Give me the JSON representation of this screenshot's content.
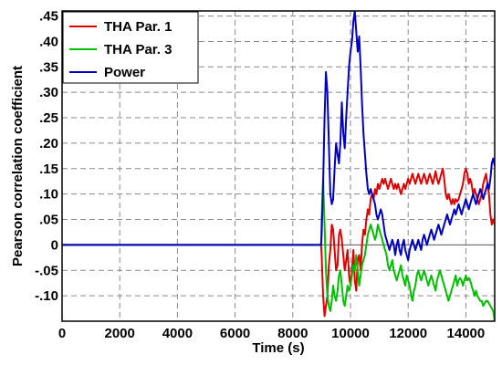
{
  "chart_data": {
    "type": "line",
    "title": "",
    "xlabel": "Time (s)",
    "ylabel": "Pearson correlation coefficient",
    "xlim": [
      0,
      15000
    ],
    "ylim": [
      -0.15,
      0.46
    ],
    "x_ticks": [
      0,
      2000,
      4000,
      6000,
      8000,
      10000,
      12000,
      14000
    ],
    "x_tick_labels": [
      "0",
      "2000",
      "4000",
      "6000",
      "8000",
      "10000",
      "12000",
      "14000"
    ],
    "y_ticks": [
      -0.1,
      -0.05,
      0,
      0.05,
      0.1,
      0.15,
      0.2,
      0.25,
      0.3,
      0.35,
      0.4,
      0.45
    ],
    "y_tick_labels": [
      "-.10",
      "-.05",
      "0",
      ".05",
      ".10",
      ".15",
      ".20",
      ".25",
      ".30",
      ".35",
      ".40",
      ".45"
    ],
    "grid": true,
    "legend_position": "top-left",
    "series": [
      {
        "name": "THA Par. 1",
        "color": "#e00000",
        "x": [
          0,
          8980,
          9000,
          9050,
          9100,
          9150,
          9200,
          9250,
          9300,
          9350,
          9400,
          9450,
          9500,
          9550,
          9600,
          9650,
          9700,
          9750,
          9800,
          9850,
          9900,
          9950,
          10000,
          10050,
          10100,
          10150,
          10200,
          10250,
          10300,
          10350,
          10400,
          10450,
          10500,
          10550,
          10600,
          10650,
          10700,
          10750,
          10800,
          10850,
          10900,
          10950,
          11000,
          11050,
          11100,
          11150,
          11200,
          11250,
          11300,
          11350,
          11400,
          11450,
          11500,
          11550,
          11600,
          11650,
          11700,
          11750,
          11800,
          11850,
          11900,
          11950,
          12000,
          12050,
          12100,
          12150,
          12200,
          12250,
          12300,
          12350,
          12400,
          12450,
          12500,
          12550,
          12600,
          12650,
          12700,
          12750,
          12800,
          12850,
          12900,
          12950,
          13000,
          13050,
          13100,
          13150,
          13200,
          13250,
          13300,
          13350,
          13400,
          13450,
          13500,
          13550,
          13600,
          13650,
          13700,
          13750,
          13800,
          13850,
          13900,
          13950,
          14000,
          14050,
          14100,
          14150,
          14200,
          14250,
          14300,
          14350,
          14400,
          14450,
          14500,
          14550,
          14600,
          14650,
          14700,
          14750,
          14800,
          14850,
          14900,
          14950,
          15000
        ],
        "y": [
          0,
          0,
          -0.02,
          -0.1,
          -0.14,
          -0.12,
          -0.1,
          -0.04,
          -0.01,
          0.04,
          0.03,
          -0.01,
          -0.05,
          -0.04,
          0.02,
          0.03,
          0.01,
          -0.02,
          -0.05,
          -0.03,
          -0.01,
          -0.06,
          -0.08,
          -0.05,
          -0.01,
          -0.07,
          -0.09,
          -0.03,
          -0.02,
          -0.05,
          0.0,
          0.03,
          0.02,
          0.05,
          0.07,
          0.06,
          0.09,
          0.1,
          0.09,
          0.11,
          0.1,
          0.12,
          0.11,
          0.12,
          0.13,
          0.12,
          0.13,
          0.12,
          0.11,
          0.12,
          0.13,
          0.12,
          0.11,
          0.12,
          0.11,
          0.12,
          0.11,
          0.1,
          0.11,
          0.12,
          0.11,
          0.12,
          0.13,
          0.12,
          0.13,
          0.14,
          0.13,
          0.12,
          0.13,
          0.14,
          0.13,
          0.12,
          0.13,
          0.14,
          0.13,
          0.12,
          0.13,
          0.14,
          0.13,
          0.12,
          0.13,
          0.145,
          0.13,
          0.12,
          0.13,
          0.14,
          0.15,
          0.13,
          0.1,
          0.09,
          0.1,
          0.09,
          0.08,
          0.09,
          0.08,
          0.09,
          0.085,
          0.09,
          0.1,
          0.11,
          0.12,
          0.14,
          0.15,
          0.14,
          0.12,
          0.13,
          0.12,
          0.1,
          0.11,
          0.1,
          0.09,
          0.08,
          0.09,
          0.1,
          0.12,
          0.13,
          0.14,
          0.12,
          0.1,
          0.06,
          0.04,
          0.05,
          0.04
        ]
      },
      {
        "name": "THA Par. 3",
        "color": "#00c000",
        "x": [
          0,
          8980,
          9000,
          9050,
          9100,
          9150,
          9200,
          9250,
          9300,
          9350,
          9400,
          9450,
          9500,
          9550,
          9600,
          9650,
          9700,
          9750,
          9800,
          9850,
          9900,
          9950,
          10000,
          10050,
          10100,
          10150,
          10200,
          10250,
          10300,
          10350,
          10400,
          10450,
          10500,
          10550,
          10600,
          10650,
          10700,
          10750,
          10800,
          10850,
          10900,
          10950,
          11000,
          11050,
          11100,
          11150,
          11200,
          11250,
          11300,
          11350,
          11400,
          11450,
          11500,
          11550,
          11600,
          11650,
          11700,
          11750,
          11800,
          11850,
          11900,
          11950,
          12000,
          12050,
          12100,
          12150,
          12200,
          12250,
          12300,
          12350,
          12400,
          12450,
          12500,
          12550,
          12600,
          12650,
          12700,
          12750,
          12800,
          12850,
          12900,
          12950,
          13000,
          13050,
          13100,
          13150,
          13200,
          13250,
          13300,
          13350,
          13400,
          13450,
          13500,
          13550,
          13600,
          13650,
          13700,
          13750,
          13800,
          13850,
          13900,
          13950,
          14000,
          14050,
          14100,
          14150,
          14200,
          14250,
          14300,
          14350,
          14400,
          14450,
          14500,
          14550,
          14600,
          14650,
          14700,
          14750,
          14800,
          14850,
          14900,
          14950,
          15000
        ],
        "y": [
          0,
          0,
          0.05,
          0.13,
          0.04,
          -0.05,
          -0.1,
          -0.12,
          -0.13,
          -0.11,
          -0.08,
          -0.1,
          -0.11,
          -0.09,
          -0.06,
          -0.05,
          -0.08,
          -0.11,
          -0.12,
          -0.1,
          -0.08,
          -0.09,
          -0.08,
          -0.06,
          -0.04,
          -0.05,
          -0.02,
          -0.05,
          -0.08,
          -0.06,
          -0.04,
          -0.03,
          -0.02,
          0.0,
          0.02,
          0.03,
          0.04,
          0.03,
          0.02,
          0.01,
          0.02,
          0.04,
          0.03,
          0.02,
          0.01,
          0.0,
          -0.01,
          -0.02,
          -0.04,
          -0.05,
          -0.04,
          -0.03,
          -0.05,
          -0.06,
          -0.07,
          -0.06,
          -0.05,
          -0.04,
          -0.06,
          -0.07,
          -0.08,
          -0.06,
          -0.07,
          -0.08,
          -0.1,
          -0.11,
          -0.09,
          -0.08,
          -0.06,
          -0.05,
          -0.06,
          -0.07,
          -0.06,
          -0.05,
          -0.06,
          -0.07,
          -0.08,
          -0.07,
          -0.06,
          -0.07,
          -0.08,
          -0.09,
          -0.07,
          -0.06,
          -0.05,
          -0.06,
          -0.07,
          -0.08,
          -0.09,
          -0.1,
          -0.11,
          -0.1,
          -0.09,
          -0.08,
          -0.07,
          -0.06,
          -0.08,
          -0.07,
          -0.065,
          -0.07,
          -0.08,
          -0.07,
          -0.06,
          -0.07,
          -0.065,
          -0.07,
          -0.08,
          -0.09,
          -0.1,
          -0.09,
          -0.1,
          -0.105,
          -0.11,
          -0.11,
          -0.12,
          -0.115,
          -0.11,
          -0.11,
          -0.115,
          -0.12,
          -0.125,
          -0.13,
          -0.15
        ]
      },
      {
        "name": "Power",
        "color": "#0000c0",
        "x": [
          0,
          8980,
          9000,
          9050,
          9100,
          9150,
          9200,
          9250,
          9300,
          9350,
          9400,
          9450,
          9500,
          9550,
          9600,
          9650,
          9700,
          9750,
          9800,
          9850,
          9900,
          9950,
          10000,
          10050,
          10100,
          10150,
          10200,
          10250,
          10300,
          10350,
          10400,
          10450,
          10500,
          10550,
          10600,
          10650,
          10700,
          10750,
          10800,
          10850,
          10900,
          10950,
          11000,
          11050,
          11100,
          11150,
          11200,
          11250,
          11300,
          11350,
          11400,
          11450,
          11500,
          11550,
          11600,
          11650,
          11700,
          11750,
          11800,
          11850,
          11900,
          11950,
          12000,
          12050,
          12100,
          12150,
          12200,
          12250,
          12300,
          12350,
          12400,
          12450,
          12500,
          12550,
          12600,
          12650,
          12700,
          12750,
          12800,
          12850,
          12900,
          12950,
          13000,
          13050,
          13100,
          13150,
          13200,
          13250,
          13300,
          13350,
          13400,
          13450,
          13500,
          13550,
          13600,
          13650,
          13700,
          13750,
          13800,
          13850,
          13900,
          13950,
          14000,
          14050,
          14100,
          14150,
          14200,
          14250,
          14300,
          14350,
          14400,
          14450,
          14500,
          14550,
          14600,
          14650,
          14700,
          14750,
          14800,
          14850,
          14900,
          14950,
          15000
        ],
        "y": [
          0,
          0,
          0.02,
          0.12,
          0.25,
          0.34,
          0.3,
          0.2,
          0.1,
          0.08,
          0.09,
          0.15,
          0.2,
          0.18,
          0.16,
          0.2,
          0.28,
          0.22,
          0.19,
          0.25,
          0.3,
          0.35,
          0.38,
          0.4,
          0.44,
          0.46,
          0.42,
          0.38,
          0.41,
          0.35,
          0.28,
          0.22,
          0.18,
          0.14,
          0.11,
          0.1,
          0.11,
          0.1,
          0.09,
          0.08,
          0.06,
          0.05,
          0.06,
          0.07,
          0.06,
          0.04,
          0.02,
          0.01,
          0.0,
          -0.01,
          0.0,
          0.01,
          0.0,
          -0.02,
          0.0,
          0.01,
          -0.01,
          -0.02,
          0.0,
          0.01,
          -0.01,
          -0.02,
          -0.03,
          -0.01,
          0.0,
          0.01,
          0.0,
          -0.01,
          0.0,
          0.01,
          0.0,
          -0.01,
          0.01,
          0.02,
          0.01,
          0.0,
          0.01,
          0.02,
          0.03,
          0.02,
          0.01,
          0.02,
          0.03,
          0.04,
          0.03,
          0.02,
          0.03,
          0.04,
          0.05,
          0.06,
          0.05,
          0.04,
          0.05,
          0.06,
          0.07,
          0.06,
          0.07,
          0.08,
          0.07,
          0.06,
          0.07,
          0.08,
          0.09,
          0.08,
          0.07,
          0.08,
          0.09,
          0.1,
          0.09,
          0.08,
          0.09,
          0.1,
          0.11,
          0.1,
          0.09,
          0.1,
          0.11,
          0.12,
          0.11,
          0.13,
          0.16,
          0.17,
          0.155
        ]
      }
    ]
  }
}
